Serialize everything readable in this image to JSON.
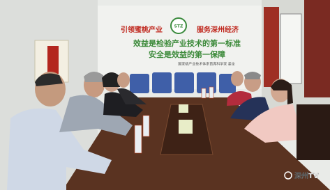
{
  "wall_sign": {
    "slogan_left": "引领蜜桃产业",
    "logo": "STZ",
    "slogan_right": "服务深州经济",
    "lines": [
      "效益是检验产业技术的第一标准",
      "安全是效益的第一保障"
    ],
    "signature": "国家桃产业技术体系首席科学家  姜全"
  },
  "watermark": "深州TV"
}
